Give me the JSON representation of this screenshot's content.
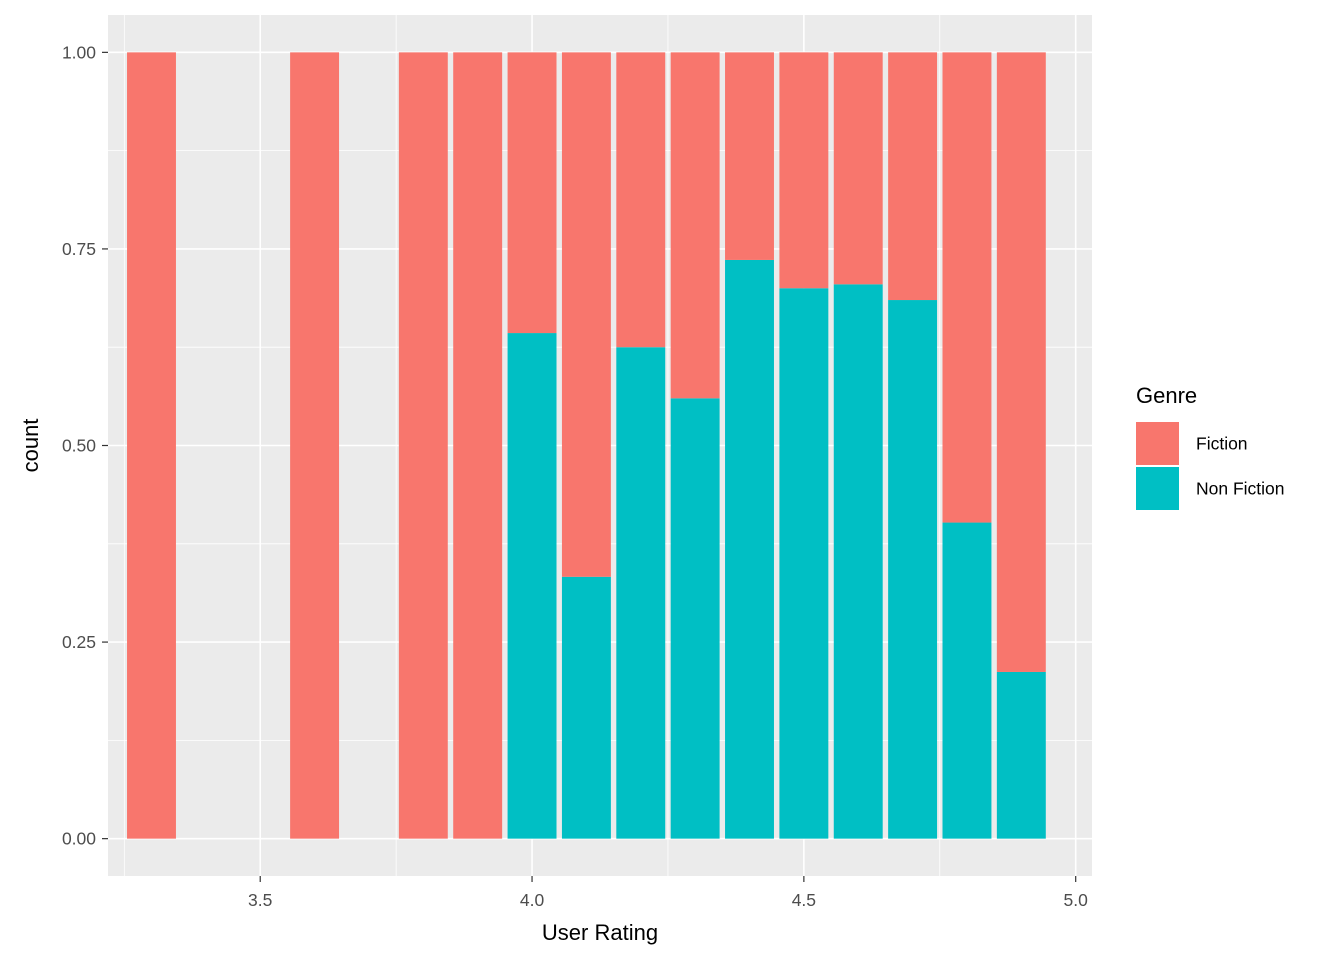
{
  "chart_data": {
    "type": "bar",
    "stacking": "fill",
    "title": "",
    "xlabel": "User Rating",
    "ylabel": "count",
    "x": [
      3.3,
      3.6,
      3.8,
      3.9,
      4.0,
      4.1,
      4.2,
      4.3,
      4.4,
      4.5,
      4.6,
      4.7,
      4.8,
      4.9
    ],
    "series": [
      {
        "name": "Fiction",
        "color": "#F8766D",
        "values": [
          1.0,
          1.0,
          1.0,
          1.0,
          0.357,
          0.667,
          0.375,
          0.44,
          0.264,
          0.3,
          0.295,
          0.315,
          0.598,
          0.788
        ]
      },
      {
        "name": "Non Fiction",
        "color": "#00BFC4",
        "values": [
          0.0,
          0.0,
          0.0,
          0.0,
          0.643,
          0.333,
          0.625,
          0.56,
          0.736,
          0.7,
          0.705,
          0.685,
          0.402,
          0.212
        ]
      }
    ],
    "xlim": [
      3.22,
      5.03
    ],
    "ylim": [
      -0.0475,
      1.0475
    ],
    "x_ticks": [
      3.5,
      4.0,
      4.5,
      5.0
    ],
    "x_tick_labels": [
      "3.5",
      "4.0",
      "4.5",
      "5.0"
    ],
    "y_ticks": [
      0,
      0.25,
      0.5,
      0.75,
      1.0
    ],
    "y_tick_labels": [
      "0.00",
      "0.25",
      "0.50",
      "0.75",
      "1.00"
    ],
    "bar_width": 0.09,
    "grid": true,
    "legend": {
      "title": "Genre",
      "position": "right",
      "items": [
        "Fiction",
        "Non Fiction"
      ]
    },
    "colors": {
      "panel_background": "#EBEBEB",
      "grid_major": "#FFFFFF",
      "grid_minor": "#FFFFFF",
      "tick_text": "#4D4D4D",
      "tick_mark": "#333333"
    }
  }
}
